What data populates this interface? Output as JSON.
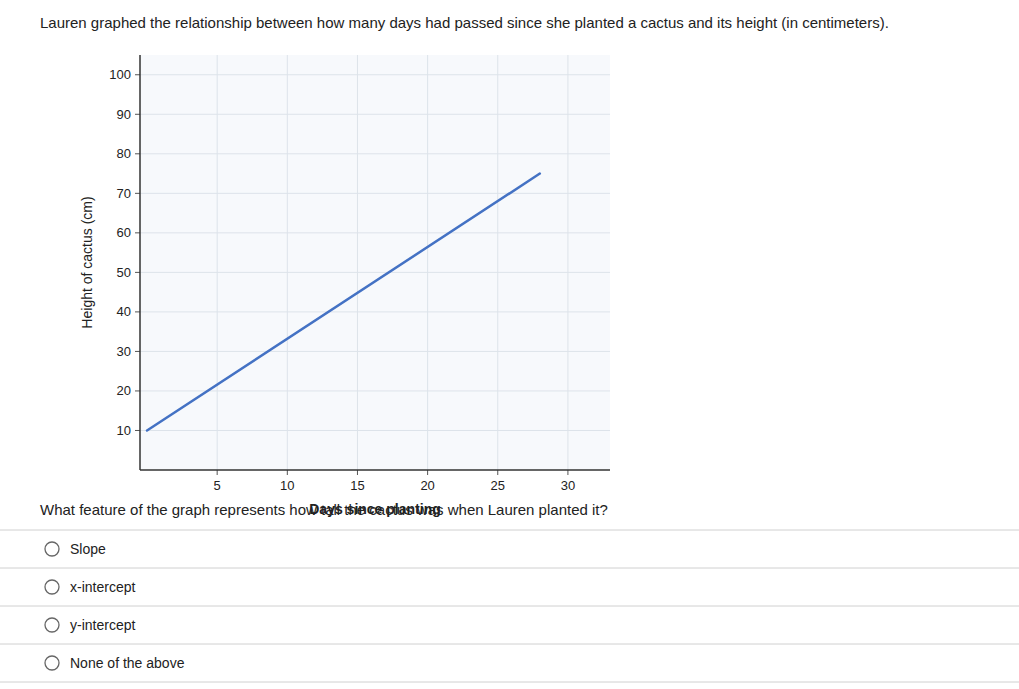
{
  "chart_data": {
    "type": "line",
    "title": "Lauren graphed the relationship between how many days had passed since she planted a cactus and its height (in centimeters).",
    "xlabel": "Days since planting",
    "ylabel": "Height of cactus (cm)",
    "x": [
      0,
      28
    ],
    "values": [
      10,
      75
    ],
    "color": "#4472C4",
    "xlim": [
      -0.5,
      33
    ],
    "ylim": [
      0,
      105
    ],
    "xticks": [
      5,
      10,
      15,
      20,
      25,
      30
    ],
    "yticks": [
      10,
      20,
      30,
      40,
      50,
      60,
      70,
      80,
      90,
      100
    ],
    "grid": true
  },
  "question": "What feature of the graph represents how tall the cactus was when Lauren planted it?",
  "options": [
    "Slope",
    "x-intercept",
    "y-intercept",
    "None of the above"
  ]
}
